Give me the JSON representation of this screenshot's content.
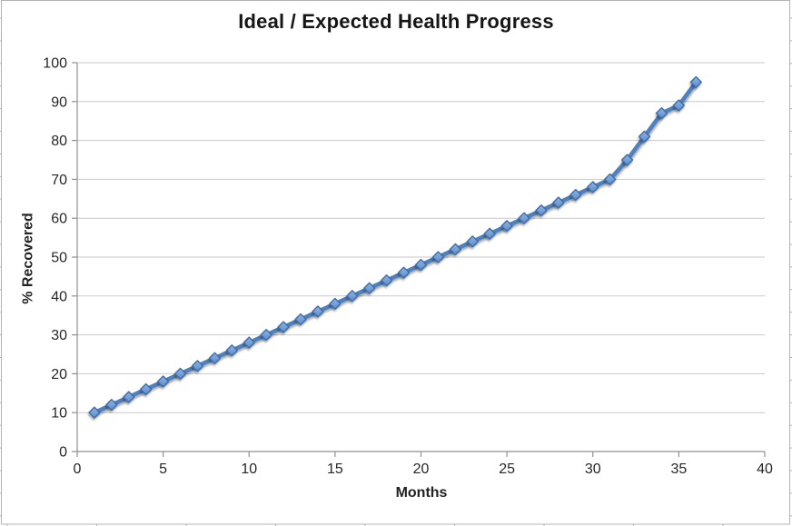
{
  "chart_data": {
    "type": "line",
    "title": "Ideal / Expected Health Progress",
    "xlabel": "Months",
    "ylabel": "% Recovered",
    "x": [
      1,
      2,
      3,
      4,
      5,
      6,
      7,
      8,
      9,
      10,
      11,
      12,
      13,
      14,
      15,
      16,
      17,
      18,
      19,
      20,
      21,
      22,
      23,
      24,
      25,
      26,
      27,
      28,
      29,
      30,
      31,
      32,
      33,
      34,
      35,
      36
    ],
    "y": [
      10,
      12,
      14,
      16,
      18,
      20,
      22,
      24,
      26,
      28,
      30,
      32,
      34,
      36,
      38,
      40,
      42,
      44,
      46,
      48,
      50,
      52,
      54,
      56,
      58,
      60,
      62,
      64,
      66,
      68,
      70,
      75,
      81,
      87,
      89,
      95
    ],
    "xlim": [
      0,
      40
    ],
    "ylim": [
      0,
      100
    ],
    "x_tick_labels": [
      "0",
      "5",
      "10",
      "15",
      "20",
      "25",
      "30",
      "35",
      "40"
    ],
    "y_tick_labels": [
      "0",
      "10",
      "20",
      "30",
      "40",
      "50",
      "60",
      "70",
      "80",
      "90",
      "100"
    ],
    "grid": "horizontal-only",
    "legend": "none",
    "marker": "diamond",
    "colors": {
      "line": "#4f81bd",
      "marker_fill_light": "#8fb6e4",
      "marker_fill_dark": "#5d8cc8",
      "marker_border": "#3a6bab",
      "gridline": "#c9c9c9",
      "axis": "#919191",
      "text": "#262626",
      "frame": "#b3b3b3"
    }
  }
}
